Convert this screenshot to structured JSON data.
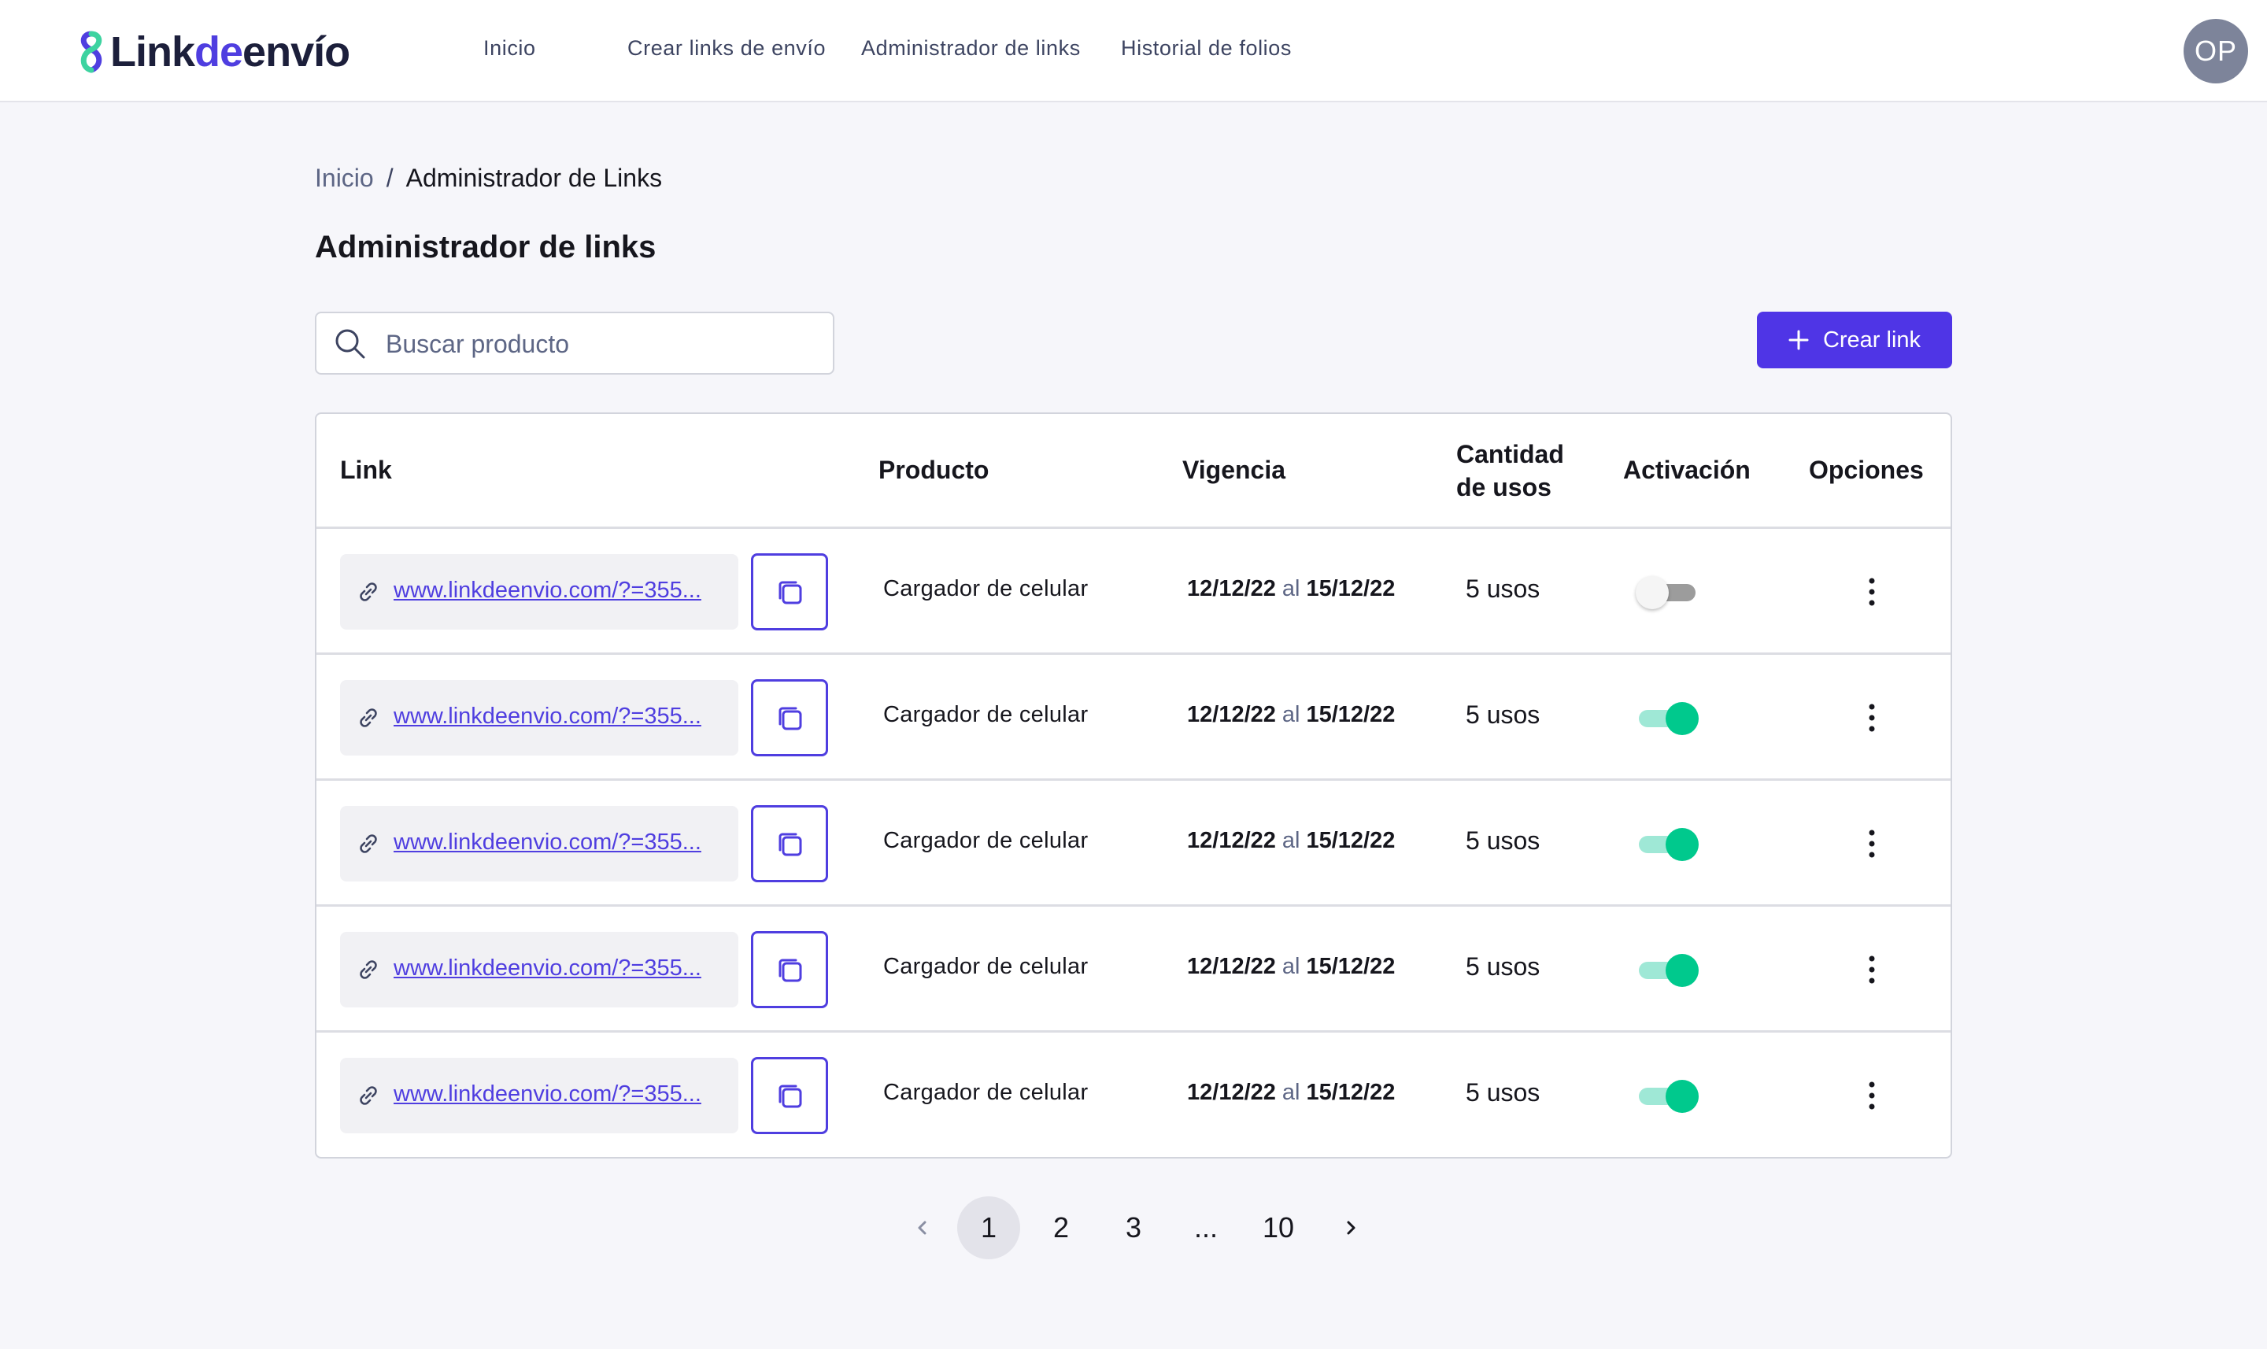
{
  "app": {
    "logo": {
      "part1": "Link",
      "part2": "de",
      "part3": "envío"
    },
    "nav": [
      "Inicio",
      "Crear links de envío",
      "Administrador de links",
      "Historial de folios"
    ],
    "user_initials": "OP"
  },
  "breadcrumb": {
    "home": "Inicio",
    "separator": "/",
    "current": "Administrador de Links"
  },
  "page": {
    "title": "Administrador de links"
  },
  "search": {
    "placeholder": "Buscar producto",
    "value": ""
  },
  "create_button": {
    "label": "Crear link"
  },
  "table": {
    "headers": {
      "link": "Link",
      "product": "Producto",
      "validity": "Vigencia",
      "uses_line1": "Cantidad",
      "uses_line2": "de usos",
      "activation": "Activación",
      "options": "Opciones"
    },
    "rows": [
      {
        "link": "www.linkdeenvio.com/?=355...",
        "product": "Cargador de celular",
        "from": "12/12/22",
        "al": "al",
        "to": "15/12/22",
        "uses": "5 usos",
        "active": false
      },
      {
        "link": "www.linkdeenvio.com/?=355...",
        "product": "Cargador de celular",
        "from": "12/12/22",
        "al": "al",
        "to": "15/12/22",
        "uses": "5 usos",
        "active": true
      },
      {
        "link": "www.linkdeenvio.com/?=355...",
        "product": "Cargador de celular",
        "from": "12/12/22",
        "al": "al",
        "to": "15/12/22",
        "uses": "5 usos",
        "active": true
      },
      {
        "link": "www.linkdeenvio.com/?=355...",
        "product": "Cargador de celular",
        "from": "12/12/22",
        "al": "al",
        "to": "15/12/22",
        "uses": "5 usos",
        "active": true
      },
      {
        "link": "www.linkdeenvio.com/?=355...",
        "product": "Cargador de celular",
        "from": "12/12/22",
        "al": "al",
        "to": "15/12/22",
        "uses": "5 usos",
        "active": true
      }
    ]
  },
  "pagination": {
    "pages": [
      "1",
      "2",
      "3",
      "...",
      "10"
    ],
    "current": "1"
  },
  "colors": {
    "accent": "#4f35e6",
    "toggle_on": "#00c98d",
    "toggle_on_track": "#9fe8d6",
    "toggle_off": "#9c9c9c"
  },
  "icons": {
    "search": "search-icon",
    "plus": "plus-icon",
    "link": "link-icon",
    "copy": "copy-icon",
    "menu": "kebab-menu-icon",
    "prev": "chevron-left-icon",
    "next": "chevron-right-icon"
  }
}
